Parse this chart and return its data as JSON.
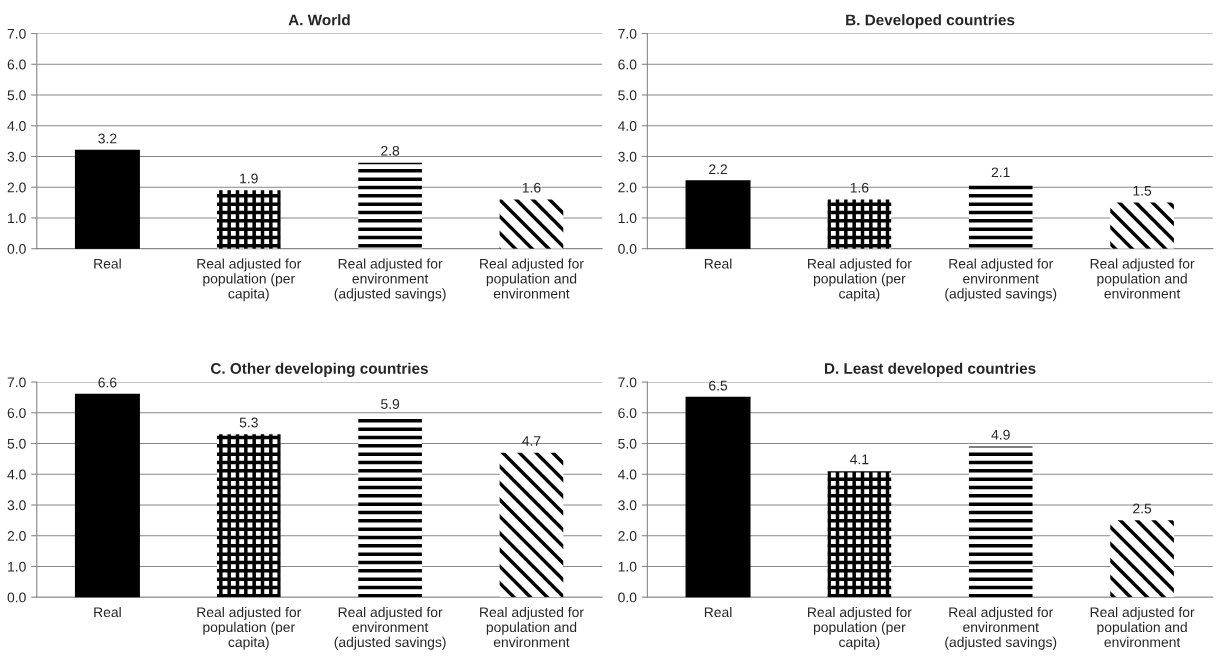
{
  "chart_data": [
    {
      "type": "bar",
      "title": "A. World",
      "categories": [
        "Real",
        "Real adjusted for\npopulation (per\ncapita)",
        "Real adjusted for\nenvironment\n(adjusted savings)",
        "Real adjusted for\npopulation and\nenvironment"
      ],
      "values": [
        3.2,
        1.9,
        2.8,
        1.6
      ],
      "colors": [
        "#000000",
        "#000000",
        "#000000",
        "#000000"
      ],
      "ylim": [
        0,
        7
      ],
      "yticks": [
        {
          "value": 0,
          "label": "0.0"
        },
        {
          "value": 1,
          "label": "1.0"
        },
        {
          "value": 2,
          "label": "2.0"
        },
        {
          "value": 3,
          "label": "3.0"
        },
        {
          "value": 4,
          "label": "4.0"
        },
        {
          "value": 5,
          "label": "5.0"
        },
        {
          "value": 6,
          "label": "6.0"
        },
        {
          "value": 7,
          "label": "7.0"
        }
      ],
      "grid": "y",
      "data_labels": true
    },
    {
      "type": "bar",
      "title": "B. Developed countries",
      "categories": [
        "Real",
        "Real adjusted for\npopulation (per\ncapita)",
        "Real adjusted for\nenvironment\n(adjusted savings)",
        "Real adjusted for\npopulation and\nenvironment"
      ],
      "values": [
        2.2,
        1.6,
        2.1,
        1.5
      ],
      "colors": [
        "#000000",
        "#000000",
        "#000000",
        "#000000"
      ],
      "ylim": [
        0,
        7
      ],
      "yticks": [
        {
          "value": 0,
          "label": "0.0"
        },
        {
          "value": 1,
          "label": "1.0"
        },
        {
          "value": 2,
          "label": "2.0"
        },
        {
          "value": 3,
          "label": "3.0"
        },
        {
          "value": 4,
          "label": "4.0"
        },
        {
          "value": 5,
          "label": "5.0"
        },
        {
          "value": 6,
          "label": "6.0"
        },
        {
          "value": 7,
          "label": "7.0"
        }
      ],
      "grid": "y",
      "data_labels": true
    },
    {
      "type": "bar",
      "title": "C. Other developing countries",
      "categories": [
        "Real",
        "Real adjusted for\npopulation (per\ncapita)",
        "Real adjusted for\nenvironment\n(adjusted savings)",
        "Real adjusted for\npopulation and\nenvironment"
      ],
      "values": [
        6.6,
        5.3,
        5.9,
        4.7
      ],
      "colors": [
        "#000000",
        "#000000",
        "#000000",
        "#000000"
      ],
      "ylim": [
        0,
        7
      ],
      "yticks": [
        {
          "value": 0,
          "label": "0.0"
        },
        {
          "value": 1,
          "label": "1.0"
        },
        {
          "value": 2,
          "label": "2.0"
        },
        {
          "value": 3,
          "label": "3.0"
        },
        {
          "value": 4,
          "label": "4.0"
        },
        {
          "value": 5,
          "label": "5.0"
        },
        {
          "value": 6,
          "label": "6.0"
        },
        {
          "value": 7,
          "label": "7.0"
        }
      ],
      "grid": "y",
      "data_labels": true
    },
    {
      "type": "bar",
      "title": "D. Least developed countries",
      "categories": [
        "Real",
        "Real adjusted for\npopulation (per\ncapita)",
        "Real adjusted for\nenvironment\n(adjusted savings)",
        "Real adjusted for\npopulation and\nenvironment"
      ],
      "values": [
        6.5,
        4.1,
        4.9,
        2.5
      ],
      "colors": [
        "#000000",
        "#000000",
        "#000000",
        "#000000"
      ],
      "ylim": [
        0,
        7
      ],
      "yticks": [
        {
          "value": 0,
          "label": "0.0"
        },
        {
          "value": 1,
          "label": "1.0"
        },
        {
          "value": 2,
          "label": "2.0"
        },
        {
          "value": 3,
          "label": "3.0"
        },
        {
          "value": 4,
          "label": "4.0"
        },
        {
          "value": 5,
          "label": "5.0"
        },
        {
          "value": 6,
          "label": "6.0"
        },
        {
          "value": 7,
          "label": "7.0"
        }
      ],
      "grid": "y",
      "data_labels": true
    }
  ]
}
